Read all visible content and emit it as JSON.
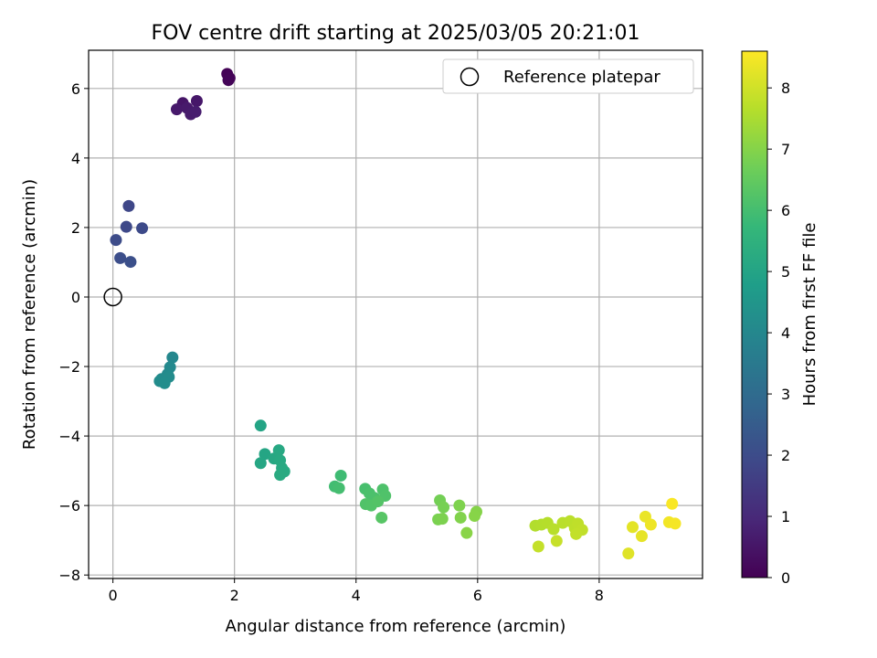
{
  "chart_data": {
    "type": "scatter",
    "title": "FOV centre drift starting at 2025/03/05 20:21:01",
    "xlabel": "Angular distance from reference (arcmin)",
    "ylabel": "Rotation from reference (arcmin)",
    "xlim": [
      -0.4,
      9.7
    ],
    "ylim": [
      -8.1,
      7.1
    ],
    "xticks": [
      0,
      2,
      4,
      6,
      8
    ],
    "yticks": [
      -8,
      -6,
      -4,
      -2,
      0,
      2,
      4,
      6
    ],
    "grid": true,
    "legend": {
      "placement": "top-right",
      "entries": [
        "Reference platepar"
      ]
    },
    "reference_point": {
      "name": "Reference platepar",
      "x": 0,
      "y": 0
    },
    "colorbar": {
      "label": "Hours from first FF file",
      "colormap": "viridis",
      "range": [
        0,
        8.6
      ],
      "ticks": [
        0,
        1,
        2,
        3,
        4,
        5,
        6,
        7,
        8
      ]
    },
    "colormap_stops": [
      "#440154",
      "#482878",
      "#3e4989",
      "#31688e",
      "#26828e",
      "#1f9e89",
      "#35b779",
      "#6ece58",
      "#b5de2b",
      "#fde725"
    ],
    "series": [
      {
        "values": [
          {
            "x": 1.88,
            "y": 6.42,
            "c": 0.05
          },
          {
            "x": 1.92,
            "y": 6.3,
            "c": 0.08
          },
          {
            "x": 1.9,
            "y": 6.24,
            "c": 0.1
          },
          {
            "x": 1.15,
            "y": 5.58,
            "c": 0.5
          },
          {
            "x": 1.38,
            "y": 5.64,
            "c": 0.55
          },
          {
            "x": 1.05,
            "y": 5.4,
            "c": 0.6
          },
          {
            "x": 1.22,
            "y": 5.44,
            "c": 0.62
          },
          {
            "x": 1.28,
            "y": 5.26,
            "c": 0.65
          },
          {
            "x": 1.36,
            "y": 5.33,
            "c": 0.68
          },
          {
            "x": 0.26,
            "y": 2.62,
            "c": 1.85
          },
          {
            "x": 0.22,
            "y": 2.02,
            "c": 1.9
          },
          {
            "x": 0.48,
            "y": 1.98,
            "c": 1.95
          },
          {
            "x": 0.05,
            "y": 1.64,
            "c": 2.0
          },
          {
            "x": 0.12,
            "y": 1.12,
            "c": 2.05
          },
          {
            "x": 0.29,
            "y": 1.01,
            "c": 2.1
          },
          {
            "x": 0.98,
            "y": -1.74,
            "c": 4.0
          },
          {
            "x": 0.94,
            "y": -2.02,
            "c": 4.05
          },
          {
            "x": 0.9,
            "y": -2.22,
            "c": 4.1
          },
          {
            "x": 0.8,
            "y": -2.36,
            "c": 4.12
          },
          {
            "x": 0.92,
            "y": -2.3,
            "c": 4.15
          },
          {
            "x": 0.77,
            "y": -2.42,
            "c": 4.18
          },
          {
            "x": 0.85,
            "y": -2.48,
            "c": 4.2
          },
          {
            "x": 2.43,
            "y": -3.7,
            "c": 5.0
          },
          {
            "x": 2.5,
            "y": -4.52,
            "c": 5.05
          },
          {
            "x": 2.43,
            "y": -4.78,
            "c": 5.1
          },
          {
            "x": 2.65,
            "y": -4.65,
            "c": 5.12
          },
          {
            "x": 2.73,
            "y": -4.41,
            "c": 5.15
          },
          {
            "x": 2.75,
            "y": -4.7,
            "c": 5.18
          },
          {
            "x": 2.78,
            "y": -4.92,
            "c": 5.2
          },
          {
            "x": 2.82,
            "y": -5.02,
            "c": 5.22
          },
          {
            "x": 2.75,
            "y": -5.12,
            "c": 5.25
          },
          {
            "x": 3.75,
            "y": -5.14,
            "c": 5.9
          },
          {
            "x": 3.65,
            "y": -5.45,
            "c": 5.95
          },
          {
            "x": 3.72,
            "y": -5.5,
            "c": 6.0
          },
          {
            "x": 4.15,
            "y": -5.52,
            "c": 6.05
          },
          {
            "x": 4.22,
            "y": -5.65,
            "c": 6.1
          },
          {
            "x": 4.3,
            "y": -5.78,
            "c": 6.12
          },
          {
            "x": 4.44,
            "y": -5.54,
            "c": 6.15
          },
          {
            "x": 4.48,
            "y": -5.72,
            "c": 6.18
          },
          {
            "x": 4.16,
            "y": -5.96,
            "c": 6.2
          },
          {
            "x": 4.25,
            "y": -6.0,
            "c": 6.22
          },
          {
            "x": 4.36,
            "y": -5.88,
            "c": 6.25
          },
          {
            "x": 4.42,
            "y": -6.35,
            "c": 6.3
          },
          {
            "x": 5.38,
            "y": -5.85,
            "c": 6.75
          },
          {
            "x": 5.44,
            "y": -6.05,
            "c": 6.8
          },
          {
            "x": 5.35,
            "y": -6.4,
            "c": 6.85
          },
          {
            "x": 5.42,
            "y": -6.38,
            "c": 6.88
          },
          {
            "x": 5.7,
            "y": -6.0,
            "c": 6.9
          },
          {
            "x": 5.72,
            "y": -6.35,
            "c": 6.95
          },
          {
            "x": 5.98,
            "y": -6.18,
            "c": 7.0
          },
          {
            "x": 5.95,
            "y": -6.3,
            "c": 7.02
          },
          {
            "x": 5.82,
            "y": -6.79,
            "c": 7.05
          },
          {
            "x": 6.95,
            "y": -6.58,
            "c": 7.6
          },
          {
            "x": 7.05,
            "y": -6.55,
            "c": 7.62
          },
          {
            "x": 7.15,
            "y": -6.5,
            "c": 7.65
          },
          {
            "x": 7.25,
            "y": -6.68,
            "c": 7.68
          },
          {
            "x": 7.4,
            "y": -6.5,
            "c": 7.7
          },
          {
            "x": 7.52,
            "y": -6.45,
            "c": 7.72
          },
          {
            "x": 7.6,
            "y": -6.65,
            "c": 7.75
          },
          {
            "x": 7.65,
            "y": -6.52,
            "c": 7.78
          },
          {
            "x": 7.72,
            "y": -6.7,
            "c": 7.8
          },
          {
            "x": 7.62,
            "y": -6.82,
            "c": 7.82
          },
          {
            "x": 7.0,
            "y": -7.18,
            "c": 7.85
          },
          {
            "x": 7.3,
            "y": -7.02,
            "c": 7.88
          },
          {
            "x": 8.48,
            "y": -7.38,
            "c": 8.2
          },
          {
            "x": 8.55,
            "y": -6.62,
            "c": 8.25
          },
          {
            "x": 8.7,
            "y": -6.88,
            "c": 8.3
          },
          {
            "x": 8.76,
            "y": -6.32,
            "c": 8.35
          },
          {
            "x": 8.85,
            "y": -6.55,
            "c": 8.4
          },
          {
            "x": 9.15,
            "y": -6.48,
            "c": 8.45
          },
          {
            "x": 9.25,
            "y": -6.52,
            "c": 8.5
          },
          {
            "x": 9.2,
            "y": -5.95,
            "c": 8.55
          }
        ]
      }
    ]
  }
}
